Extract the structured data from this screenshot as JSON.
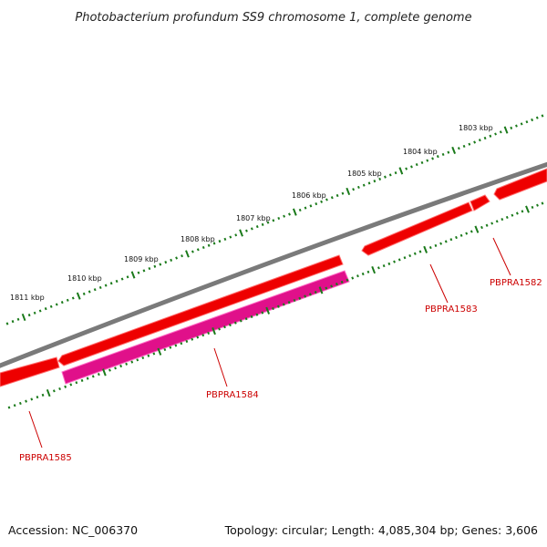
{
  "title": "Photobacterium profundum SS9 chromosome 1, complete genome",
  "footer": {
    "accession": "Accession: NC_006370",
    "summary": "Topology: circular; Length: 4,085,304 bp; Genes: 3,606"
  },
  "colors": {
    "backbone": "#7a7a7a",
    "forward_gene": "#ee0000",
    "reverse_gene": "#e0108a",
    "tick": "#1a7a1a",
    "label": "#cc0000",
    "leader": "#cc0000"
  },
  "scale_kbp": [
    {
      "kbp": 1803,
      "label": "1803 kbp"
    },
    {
      "kbp": 1804,
      "label": "1804 kbp"
    },
    {
      "kbp": 1805,
      "label": "1805 kbp"
    },
    {
      "kbp": 1806,
      "label": "1806 kbp"
    },
    {
      "kbp": 1807,
      "label": "1807 kbp"
    },
    {
      "kbp": 1808,
      "label": "1808 kbp"
    },
    {
      "kbp": 1809,
      "label": "1809 kbp"
    },
    {
      "kbp": 1810,
      "label": "1810 kbp"
    },
    {
      "kbp": 1811,
      "label": "1811 kbp"
    }
  ],
  "genes": [
    {
      "name": "PBPRA1582",
      "strand": "forward"
    },
    {
      "name": "PBPRA1583",
      "strand": "forward"
    },
    {
      "name": "PBPRA1584",
      "strand": "reverse"
    },
    {
      "name": "PBPRA1585",
      "strand": "forward"
    }
  ]
}
